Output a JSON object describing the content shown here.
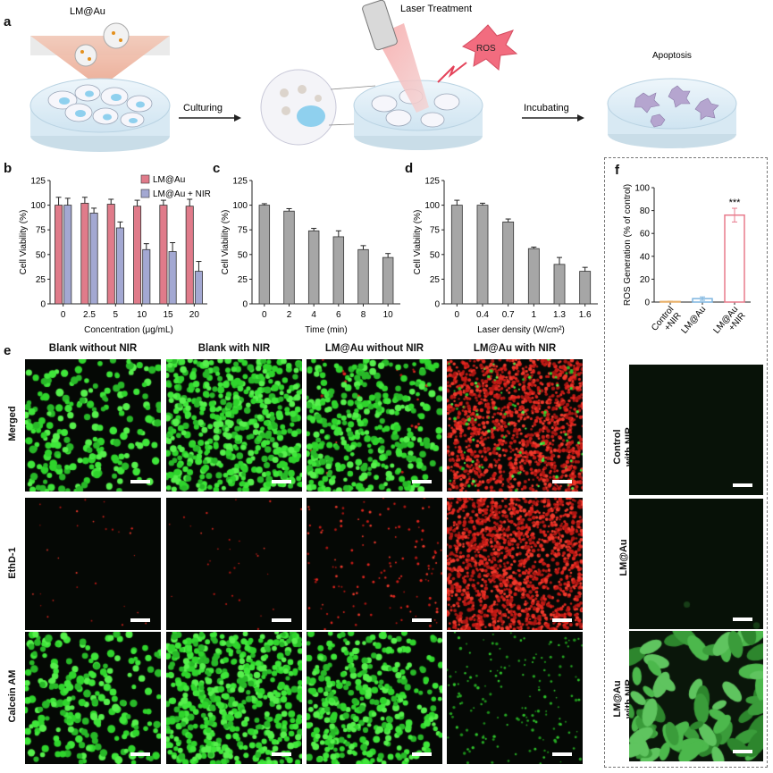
{
  "panel_labels": {
    "a": "a",
    "b": "b",
    "c": "c",
    "d": "d",
    "e": "e",
    "f": "f"
  },
  "schematic": {
    "lm_au_label": "LM@Au",
    "laser_label": "Laser Treatment",
    "ros_label": "ROS",
    "culturing_label": "Culturing",
    "incubating_label": "Incubating",
    "apoptosis_label": "Apoptosis"
  },
  "chart_data": [
    {
      "id": "b",
      "type": "bar",
      "categories": [
        "0",
        "2.5",
        "5",
        "10",
        "15",
        "20"
      ],
      "series": [
        {
          "name": "LM@Au",
          "values": [
            100,
            102,
            101,
            99,
            100,
            99
          ],
          "errors": [
            8,
            6,
            5,
            6,
            5,
            7
          ],
          "color": "#e07b8a"
        },
        {
          "name": "LM@Au + NIR",
          "values": [
            100,
            92,
            77,
            55,
            53,
            33
          ],
          "errors": [
            7,
            5,
            6,
            6,
            9,
            10
          ],
          "color": "#a3a8d2"
        }
      ],
      "xlabel": "Concentration (μg/mL)",
      "ylabel": "Cell Viability (%)",
      "ylim": [
        0,
        125
      ],
      "yticks": [
        0,
        25,
        50,
        75,
        100,
        125
      ]
    },
    {
      "id": "c",
      "type": "bar",
      "categories": [
        "0",
        "2",
        "4",
        "6",
        "8",
        "10"
      ],
      "series": [
        {
          "name": "",
          "values": [
            100,
            94,
            74,
            68,
            55,
            47
          ],
          "errors": [
            1.5,
            2.5,
            2.5,
            6,
            4,
            4
          ],
          "color": "#a6a6a6"
        }
      ],
      "xlabel": "Time (min)",
      "ylabel": "Cell Viability (%)",
      "ylim": [
        0,
        125
      ],
      "yticks": [
        0,
        25,
        50,
        75,
        100,
        125
      ]
    },
    {
      "id": "d",
      "type": "bar",
      "categories": [
        "0",
        "0.4",
        "0.7",
        "1",
        "1.3",
        "1.6"
      ],
      "series": [
        {
          "name": "",
          "values": [
            100,
            100,
            83,
            56,
            40,
            33
          ],
          "errors": [
            5,
            2,
            3,
            1.5,
            7,
            4
          ],
          "color": "#a6a6a6"
        }
      ],
      "xlabel": "Laser density (W/cm²)",
      "ylabel": "Cell Viability (%)",
      "ylim": [
        0,
        125
      ],
      "yticks": [
        0,
        25,
        50,
        75,
        100,
        125
      ]
    },
    {
      "id": "f",
      "type": "bar",
      "categories": [
        "Control +NIR",
        "LM@Au",
        "LM@Au +NIR"
      ],
      "series": [
        {
          "name": "",
          "values": [
            0.5,
            3,
            76
          ],
          "errors": [
            0.3,
            1.5,
            6
          ],
          "color": "#e87b8c"
        }
      ],
      "bar_colors": [
        "#e8b06a",
        "#7fb6e0",
        "#e87b8c"
      ],
      "ylabel": "ROS Generation (% of control)",
      "ylim": [
        0,
        100
      ],
      "yticks": [
        0,
        20,
        40,
        60,
        80,
        100
      ],
      "annotation": "***"
    }
  ],
  "panel_e": {
    "columns": [
      "Blank without NIR",
      "Blank with NIR",
      "LM@Au without NIR",
      "LM@Au with NIR"
    ],
    "rows": [
      "Merged",
      "EthD-1",
      "Calcein AM"
    ]
  },
  "panel_f_images": {
    "rows": [
      "Control with NIR",
      "LM@Au",
      "LM@Au with NIR"
    ]
  }
}
